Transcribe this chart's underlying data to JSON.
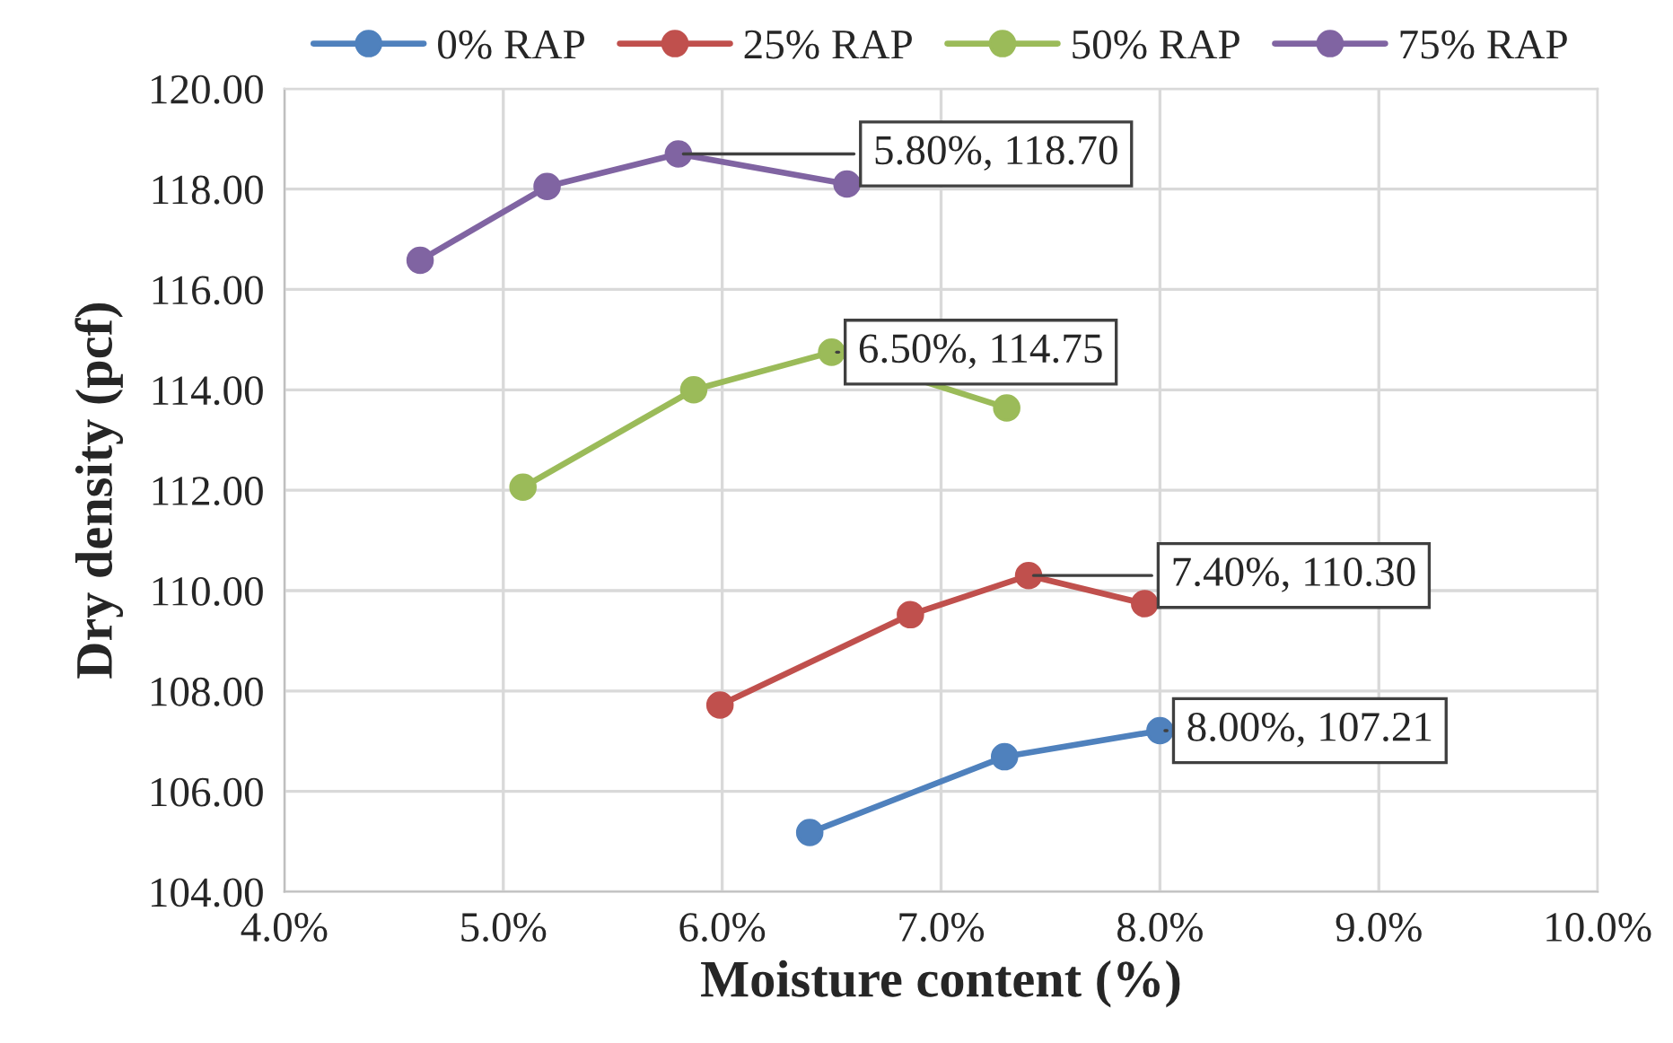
{
  "chart_data": {
    "type": "line",
    "xlabel": "Moisture content (%)",
    "ylabel": "Dry density (pcf)",
    "xlim": [
      4.0,
      10.0
    ],
    "ylim": [
      104.0,
      120.0
    ],
    "xticks": [
      {
        "value": 4.0,
        "label": "4.0%"
      },
      {
        "value": 5.0,
        "label": "5.0%"
      },
      {
        "value": 6.0,
        "label": "6.0%"
      },
      {
        "value": 7.0,
        "label": "7.0%"
      },
      {
        "value": 8.0,
        "label": "8.0%"
      },
      {
        "value": 9.0,
        "label": "9.0%"
      },
      {
        "value": 10.0,
        "label": "10.0%"
      }
    ],
    "yticks": [
      {
        "value": 104,
        "label": "104.00"
      },
      {
        "value": 106,
        "label": "106.00"
      },
      {
        "value": 108,
        "label": "108.00"
      },
      {
        "value": 110,
        "label": "110.00"
      },
      {
        "value": 112,
        "label": "112.00"
      },
      {
        "value": 114,
        "label": "114.00"
      },
      {
        "value": 116,
        "label": "116.00"
      },
      {
        "value": 118,
        "label": "118.00"
      },
      {
        "value": 120,
        "label": "120.00"
      }
    ],
    "grid": true,
    "legend": "top",
    "marker": "circle",
    "line_style": "solid",
    "series": [
      {
        "name": "0% RAP",
        "color": "#4f81bd",
        "x": [
          6.4,
          7.29,
          8.0
        ],
        "values": [
          105.18,
          106.69,
          107.21
        ]
      },
      {
        "name": "25% RAP",
        "color": "#c0504d",
        "x": [
          5.99,
          6.86,
          7.4,
          7.93
        ],
        "values": [
          107.72,
          109.52,
          110.3,
          109.74
        ]
      },
      {
        "name": "50% RAP",
        "color": "#9bbb59",
        "x": [
          5.09,
          5.87,
          6.5,
          7.3
        ],
        "values": [
          112.06,
          114.0,
          114.75,
          113.64
        ]
      },
      {
        "name": "75% RAP",
        "color": "#8064a2",
        "x": [
          4.62,
          5.2,
          5.8,
          6.57
        ],
        "values": [
          116.58,
          118.05,
          118.7,
          118.1
        ]
      }
    ],
    "annotations": [
      {
        "text": "8.00%, 107.21",
        "x": 8.0,
        "y": 107.21
      },
      {
        "text": "7.40%, 110.30",
        "x": 7.4,
        "y": 110.3
      },
      {
        "text": "6.50%, 114.75",
        "x": 6.5,
        "y": 114.75
      },
      {
        "text": "5.80%, 118.70",
        "x": 5.8,
        "y": 118.7
      }
    ]
  }
}
